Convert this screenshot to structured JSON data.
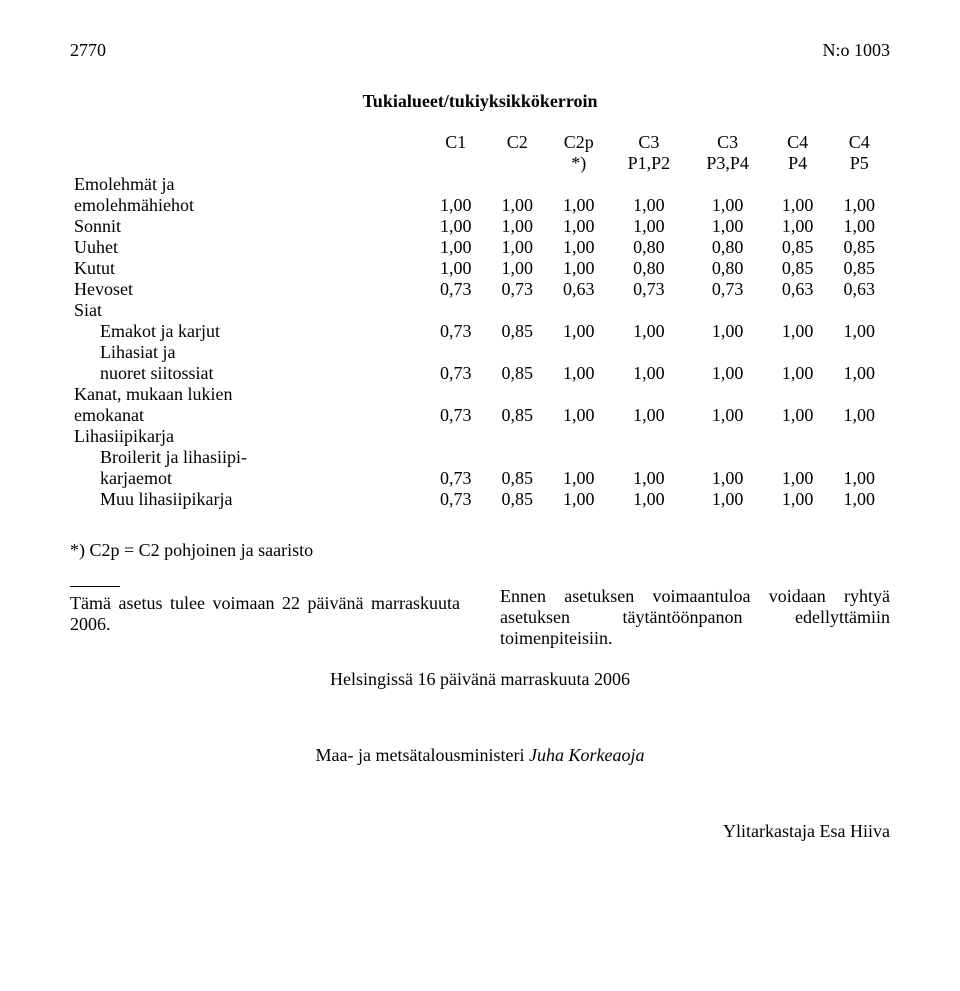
{
  "header": {
    "page_number": "2770",
    "doc_number": "N:o 1003"
  },
  "table_title": "Tukialueet/tukiyksikkökerroin",
  "columns_line1": [
    "C1",
    "C2",
    "C2p",
    "C3",
    "C3",
    "C4",
    "C4"
  ],
  "columns_line2": [
    "",
    "",
    "*)",
    "P1,P2",
    "P3,P4",
    "P4",
    "P5"
  ],
  "rows": [
    {
      "label": "Emolehmät ja",
      "indent": false,
      "vals": []
    },
    {
      "label": "emolehmähiehot",
      "indent": false,
      "vals": [
        "1,00",
        "1,00",
        "1,00",
        "1,00",
        "1,00",
        "1,00",
        "1,00"
      ]
    },
    {
      "label": "Sonnit",
      "indent": false,
      "vals": [
        "1,00",
        "1,00",
        "1,00",
        "1,00",
        "1,00",
        "1,00",
        "1,00"
      ]
    },
    {
      "label": "Uuhet",
      "indent": false,
      "vals": [
        "1,00",
        "1,00",
        "1,00",
        "0,80",
        "0,80",
        "0,85",
        "0,85"
      ]
    },
    {
      "label": "Kutut",
      "indent": false,
      "vals": [
        "1,00",
        "1,00",
        "1,00",
        "0,80",
        "0,80",
        "0,85",
        "0,85"
      ]
    },
    {
      "label": "Hevoset",
      "indent": false,
      "vals": [
        "0,73",
        "0,73",
        "0,63",
        "0,73",
        "0,73",
        "0,63",
        "0,63"
      ]
    },
    {
      "label": "Siat",
      "indent": false,
      "vals": []
    },
    {
      "label": "Emakot ja karjut",
      "indent": true,
      "vals": [
        "0,73",
        "0,85",
        "1,00",
        "1,00",
        "1,00",
        "1,00",
        "1,00"
      ]
    },
    {
      "label": "Lihasiat ja",
      "indent": true,
      "vals": []
    },
    {
      "label": "nuoret siitossiat",
      "indent": true,
      "vals": [
        "0,73",
        "0,85",
        "1,00",
        "1,00",
        "1,00",
        "1,00",
        "1,00"
      ]
    },
    {
      "label": "Kanat, mukaan lukien",
      "indent": false,
      "vals": []
    },
    {
      "label": "emokanat",
      "indent": false,
      "vals": [
        "0,73",
        "0,85",
        "1,00",
        "1,00",
        "1,00",
        "1,00",
        "1,00"
      ]
    },
    {
      "label": "Lihasiipikarja",
      "indent": false,
      "vals": []
    },
    {
      "label": "Broilerit ja lihasiipi-",
      "indent": true,
      "vals": []
    },
    {
      "label": "karjaemot",
      "indent": true,
      "vals": [
        "0,73",
        "0,85",
        "1,00",
        "1,00",
        "1,00",
        "1,00",
        "1,00"
      ]
    },
    {
      "label": "Muu lihasiipikarja",
      "indent": true,
      "vals": [
        "0,73",
        "0,85",
        "1,00",
        "1,00",
        "1,00",
        "1,00",
        "1,00"
      ]
    }
  ],
  "footnote": "*) C2p = C2 pohjoinen ja saaristo",
  "left_para": "Tämä asetus tulee voimaan 22 päivänä marraskuuta 2006.",
  "right_para": "Ennen asetuksen voimaantuloa voidaan ryhtyä asetuksen täytäntöönpanon edellyttämiin toimenpiteisiin.",
  "helsinki_line": "Helsingissä 16 päivänä marraskuuta 2006",
  "minister_line": "Maa- ja metsätalousministeri ",
  "minister_name": "Juha Korkeaoja",
  "inspector_line": "Ylitarkastaja Esa Hiiva"
}
